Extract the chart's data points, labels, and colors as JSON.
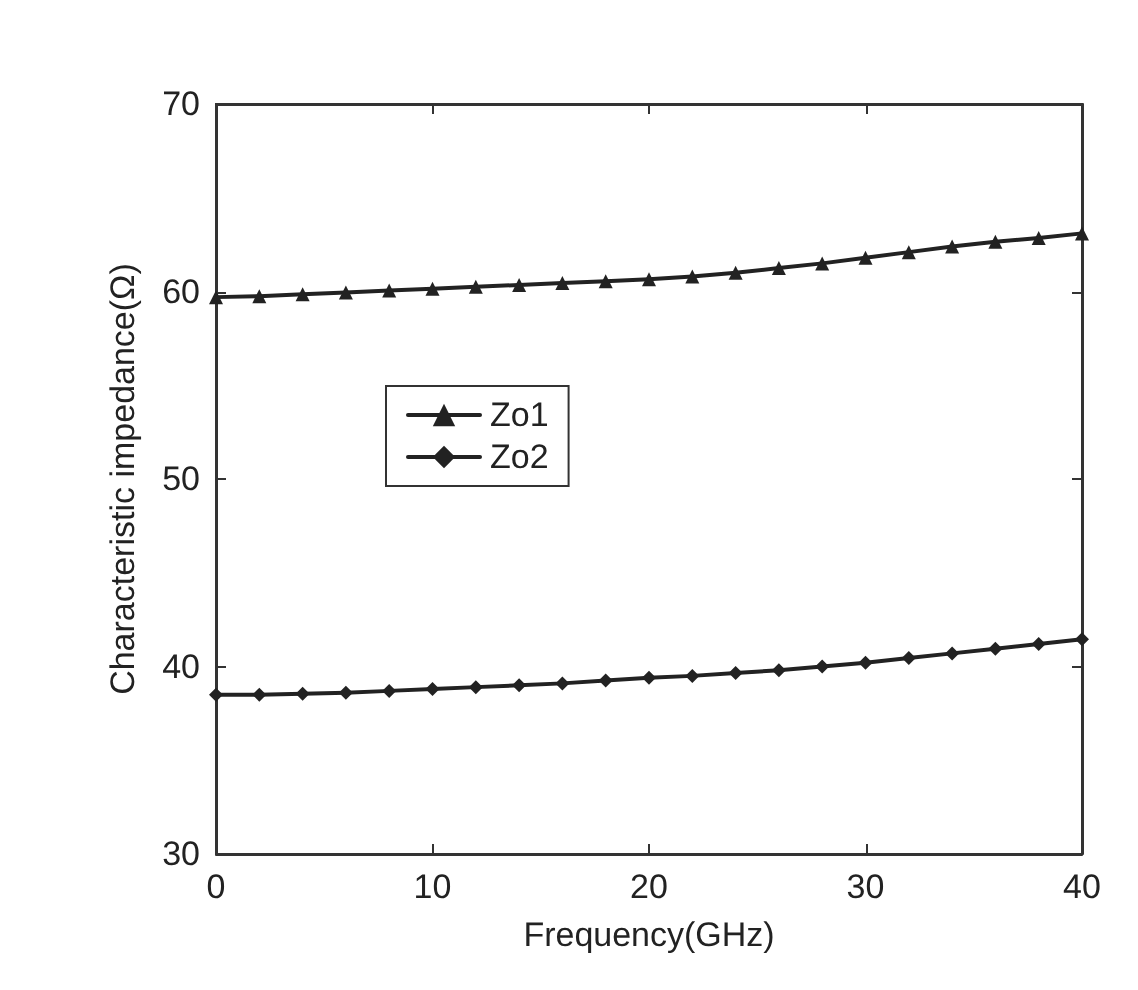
{
  "chart_data": {
    "type": "line",
    "xlabel": "Frequency(GHz)",
    "ylabel": "Characteristic impedance(Ω)",
    "x": [
      0,
      2,
      4,
      6,
      8,
      10,
      12,
      14,
      16,
      18,
      20,
      22,
      24,
      26,
      28,
      30,
      32,
      34,
      36,
      38,
      40
    ],
    "series": [
      {
        "name": "Zo1",
        "color": "#222222",
        "marker": "triangle",
        "values": [
          59.7,
          59.75,
          59.85,
          59.95,
          60.05,
          60.15,
          60.25,
          60.35,
          60.45,
          60.55,
          60.65,
          60.8,
          61.0,
          61.25,
          61.5,
          61.8,
          62.1,
          62.4,
          62.65,
          62.85,
          63.1
        ]
      },
      {
        "name": "Zo2",
        "color": "#222222",
        "marker": "diamond",
        "values": [
          38.5,
          38.5,
          38.55,
          38.6,
          38.7,
          38.8,
          38.9,
          39.0,
          39.1,
          39.25,
          39.4,
          39.5,
          39.65,
          39.8,
          40.0,
          40.2,
          40.45,
          40.7,
          40.95,
          41.2,
          41.45
        ]
      }
    ],
    "xlim": [
      0,
      40
    ],
    "xticks": [
      0,
      10,
      20,
      30,
      40
    ],
    "ylim": [
      30,
      70
    ],
    "yticks": [
      30,
      40,
      50,
      60,
      70
    ],
    "grid": false,
    "legend": "left",
    "line_style": "solid"
  }
}
